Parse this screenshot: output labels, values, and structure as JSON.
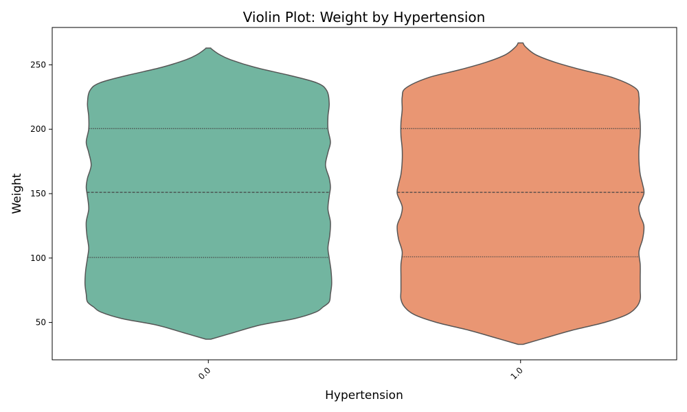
{
  "chart_data": {
    "type": "violin",
    "title": "Violin Plot: Weight by Hypertension",
    "xlabel": "Hypertension",
    "ylabel": "Weight",
    "ylim": [
      21,
      279
    ],
    "yticks": [
      50,
      100,
      150,
      200,
      250
    ],
    "categories": [
      "0.0",
      "1.0"
    ],
    "inner": "quartile",
    "grid": false,
    "series": [
      {
        "category": "0.0",
        "color": "#72b5a0",
        "min": 37,
        "max": 263,
        "quartiles": [
          100.5,
          151,
          200.5
        ],
        "profile": [
          [
            37,
            0.02
          ],
          [
            42,
            0.2
          ],
          [
            48,
            0.42
          ],
          [
            53,
            0.7
          ],
          [
            58,
            0.87
          ],
          [
            62,
            0.93
          ],
          [
            66,
            0.98
          ],
          [
            72,
            0.99
          ],
          [
            80,
            1.0
          ],
          [
            90,
            0.995
          ],
          [
            100,
            0.98
          ],
          [
            108,
            0.97
          ],
          [
            118,
            0.985
          ],
          [
            128,
            0.99
          ],
          [
            138,
            0.97
          ],
          [
            148,
            0.98
          ],
          [
            155,
            0.99
          ],
          [
            162,
            0.98
          ],
          [
            172,
            0.95
          ],
          [
            182,
            0.97
          ],
          [
            190,
            0.99
          ],
          [
            200,
            0.97
          ],
          [
            210,
            0.97
          ],
          [
            220,
            0.98
          ],
          [
            230,
            0.96
          ],
          [
            236,
            0.88
          ],
          [
            242,
            0.65
          ],
          [
            248,
            0.38
          ],
          [
            254,
            0.18
          ],
          [
            258,
            0.09
          ],
          [
            262,
            0.03
          ],
          [
            263,
            0.02
          ]
        ]
      },
      {
        "category": "1.0",
        "color": "#e99673",
        "min": 33,
        "max": 267,
        "quartiles": [
          101,
          151,
          200.5
        ],
        "profile": [
          [
            33,
            0.02
          ],
          [
            38,
            0.2
          ],
          [
            44,
            0.42
          ],
          [
            50,
            0.68
          ],
          [
            56,
            0.86
          ],
          [
            62,
            0.94
          ],
          [
            68,
            0.97
          ],
          [
            75,
            0.97
          ],
          [
            85,
            0.97
          ],
          [
            95,
            0.97
          ],
          [
            105,
            0.96
          ],
          [
            115,
            0.99
          ],
          [
            125,
            1.0
          ],
          [
            133,
            0.97
          ],
          [
            140,
            0.96
          ],
          [
            150,
            1.0
          ],
          [
            157,
            0.99
          ],
          [
            165,
            0.97
          ],
          [
            175,
            0.96
          ],
          [
            185,
            0.96
          ],
          [
            195,
            0.97
          ],
          [
            205,
            0.97
          ],
          [
            215,
            0.96
          ],
          [
            225,
            0.96
          ],
          [
            232,
            0.93
          ],
          [
            240,
            0.75
          ],
          [
            246,
            0.5
          ],
          [
            252,
            0.28
          ],
          [
            258,
            0.12
          ],
          [
            264,
            0.04
          ],
          [
            267,
            0.02
          ]
        ]
      }
    ]
  }
}
